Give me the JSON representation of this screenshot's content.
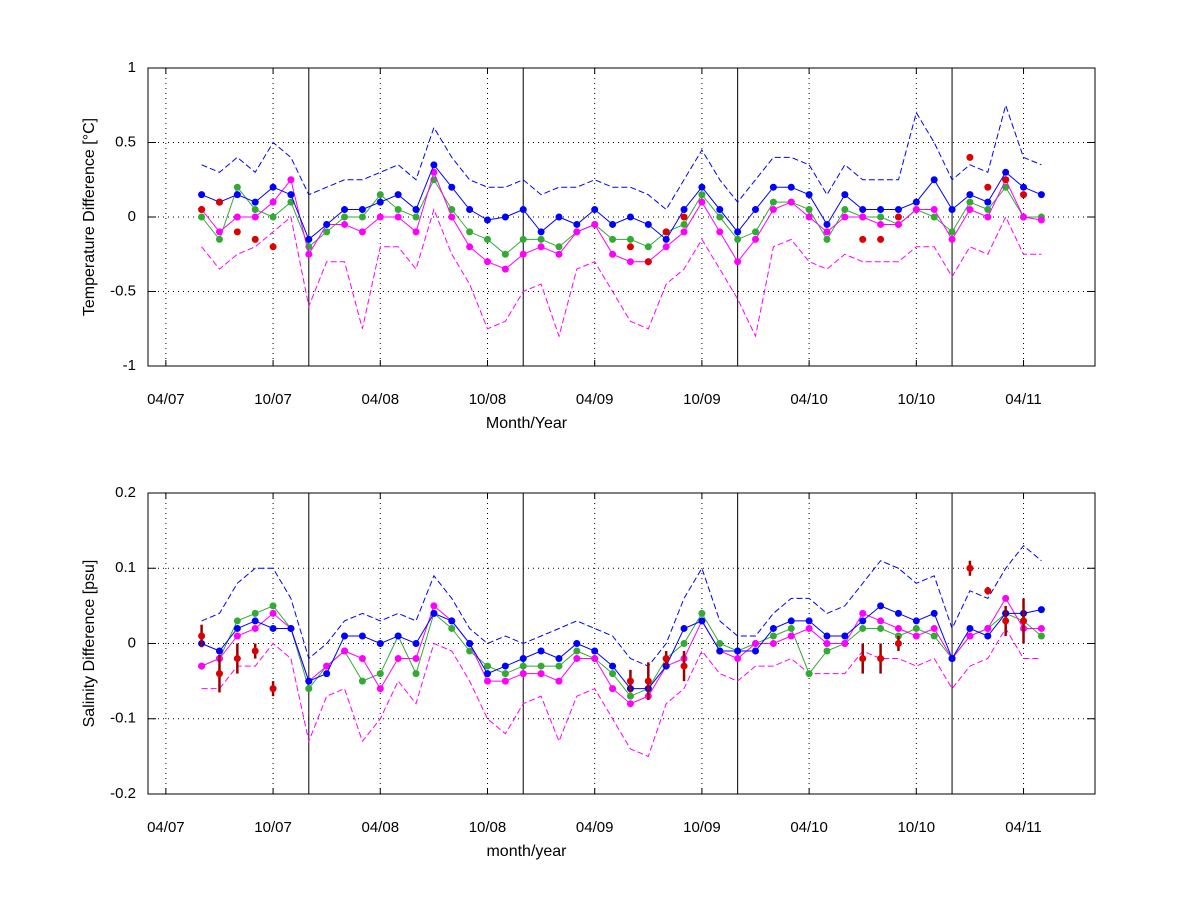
{
  "chart_data": [
    {
      "type": "line",
      "xlabel": "Month/Year",
      "ylabel": "Temperature Difference [°C]",
      "xlim": [
        "03/07",
        "08/11"
      ],
      "xticks": [
        "04/07",
        "10/07",
        "04/08",
        "10/08",
        "04/09",
        "10/09",
        "04/10",
        "10/10",
        "04/11"
      ],
      "vlines": [
        "12/07",
        "12/08",
        "12/09",
        "12/10"
      ],
      "ylim": [
        -1,
        1
      ],
      "yticks": [
        -1,
        -0.5,
        0,
        0.5,
        1
      ],
      "grid": true,
      "x": [
        "06/07",
        "07/07",
        "08/07",
        "09/07",
        "10/07",
        "11/07",
        "12/07",
        "01/08",
        "02/08",
        "03/08",
        "04/08",
        "05/08",
        "06/08",
        "07/08",
        "08/08",
        "09/08",
        "10/08",
        "11/08",
        "12/08",
        "01/09",
        "02/09",
        "03/09",
        "04/09",
        "05/09",
        "06/09",
        "07/09",
        "08/09",
        "09/09",
        "10/09",
        "11/09",
        "12/09",
        "01/10",
        "02/10",
        "03/10",
        "04/10",
        "05/10",
        "06/10",
        "07/10",
        "08/10",
        "09/10",
        "10/10",
        "11/10",
        "12/10",
        "01/11",
        "02/11",
        "03/11",
        "04/11",
        "05/11"
      ],
      "series": [
        {
          "color": "#0000ff",
          "style": "dashed",
          "values": [
            0.35,
            0.3,
            0.4,
            0.3,
            0.5,
            0.4,
            0.15,
            0.2,
            0.25,
            0.25,
            0.3,
            0.35,
            0.25,
            0.6,
            0.4,
            0.25,
            0.2,
            0.2,
            0.25,
            0.15,
            0.2,
            0.2,
            0.25,
            0.2,
            0.2,
            0.15,
            0.05,
            0.25,
            0.45,
            0.25,
            0.1,
            0.25,
            0.4,
            0.4,
            0.35,
            0.15,
            0.35,
            0.25,
            0.25,
            0.25,
            0.7,
            0.5,
            0.25,
            0.35,
            0.3,
            0.75,
            0.4,
            0.35
          ]
        },
        {
          "color": "#ff00ff",
          "style": "dashed",
          "values": [
            -0.2,
            -0.35,
            -0.25,
            -0.2,
            -0.1,
            0.0,
            -0.6,
            -0.3,
            -0.3,
            -0.75,
            -0.2,
            -0.2,
            -0.35,
            0.05,
            -0.25,
            -0.45,
            -0.75,
            -0.7,
            -0.5,
            -0.45,
            -0.8,
            -0.35,
            -0.3,
            -0.5,
            -0.7,
            -0.75,
            -0.45,
            -0.35,
            -0.15,
            -0.35,
            -0.55,
            -0.8,
            -0.2,
            -0.15,
            -0.3,
            -0.35,
            -0.25,
            -0.3,
            -0.3,
            -0.3,
            -0.2,
            -0.2,
            -0.4,
            -0.2,
            -0.25,
            0.0,
            -0.25,
            -0.25
          ]
        },
        {
          "color": "#33aa33",
          "style": "line+markers",
          "values": [
            0.0,
            -0.15,
            0.2,
            0.05,
            0.0,
            0.1,
            -0.2,
            -0.1,
            0.0,
            0.0,
            0.15,
            0.05,
            0.0,
            0.25,
            0.05,
            -0.1,
            -0.15,
            -0.25,
            -0.15,
            -0.15,
            -0.2,
            -0.1,
            -0.05,
            -0.15,
            -0.15,
            -0.2,
            -0.1,
            -0.05,
            0.15,
            0.0,
            -0.15,
            -0.1,
            0.1,
            0.1,
            0.05,
            -0.15,
            0.05,
            0.0,
            0.0,
            -0.05,
            0.05,
            0.0,
            -0.1,
            0.1,
            0.05,
            0.2,
            0.0,
            0.0
          ]
        },
        {
          "color": "#ff00ff",
          "style": "line+markers",
          "values": [
            0.05,
            -0.1,
            0.0,
            0.0,
            0.1,
            0.25,
            -0.25,
            -0.05,
            -0.05,
            -0.1,
            0.0,
            0.0,
            -0.1,
            0.3,
            0.0,
            -0.2,
            -0.3,
            -0.35,
            -0.25,
            -0.2,
            -0.25,
            -0.1,
            -0.05,
            -0.25,
            -0.3,
            -0.3,
            -0.2,
            -0.1,
            0.1,
            -0.1,
            -0.3,
            -0.15,
            0.05,
            0.1,
            0.0,
            -0.1,
            0.0,
            0.0,
            -0.05,
            -0.05,
            0.05,
            0.05,
            -0.15,
            0.05,
            0.0,
            0.25,
            0.0,
            -0.02
          ]
        },
        {
          "color": "#0000ff",
          "style": "line+markers",
          "values": [
            0.15,
            0.1,
            0.15,
            0.1,
            0.2,
            0.15,
            -0.15,
            -0.05,
            0.05,
            0.05,
            0.1,
            0.15,
            0.05,
            0.35,
            0.2,
            0.05,
            -0.02,
            0.0,
            0.05,
            -0.1,
            0.0,
            -0.05,
            0.05,
            -0.05,
            0.0,
            -0.05,
            -0.15,
            0.05,
            0.2,
            0.05,
            -0.1,
            0.05,
            0.2,
            0.2,
            0.15,
            -0.05,
            0.15,
            0.05,
            0.05,
            0.05,
            0.1,
            0.25,
            0.05,
            0.15,
            0.1,
            0.3,
            0.2,
            0.15
          ]
        },
        {
          "color": "#dd0000",
          "style": "markers",
          "values": [
            0.05,
            0.1,
            -0.1,
            -0.15,
            -0.2,
            null,
            null,
            null,
            null,
            null,
            null,
            null,
            null,
            null,
            null,
            null,
            null,
            null,
            null,
            null,
            null,
            null,
            null,
            null,
            -0.2,
            -0.3,
            -0.1,
            0.0,
            null,
            null,
            null,
            null,
            null,
            null,
            null,
            null,
            null,
            -0.15,
            -0.15,
            0.0,
            null,
            null,
            null,
            0.4,
            0.2,
            0.25,
            0.15,
            null
          ]
        }
      ]
    },
    {
      "type": "line",
      "xlabel": "month/year",
      "ylabel": "Salinity Difference [psu]",
      "xlim": [
        "03/07",
        "08/11"
      ],
      "xticks": [
        "04/07",
        "10/07",
        "04/08",
        "10/08",
        "04/09",
        "10/09",
        "04/10",
        "10/10",
        "04/11"
      ],
      "vlines": [
        "12/07",
        "12/08",
        "12/09",
        "12/10"
      ],
      "ylim": [
        -0.2,
        0.2
      ],
      "yticks": [
        -0.2,
        -0.1,
        0,
        0.1,
        0.2
      ],
      "grid": true,
      "x": [
        "06/07",
        "07/07",
        "08/07",
        "09/07",
        "10/07",
        "11/07",
        "12/07",
        "01/08",
        "02/08",
        "03/08",
        "04/08",
        "05/08",
        "06/08",
        "07/08",
        "08/08",
        "09/08",
        "10/08",
        "11/08",
        "12/08",
        "01/09",
        "02/09",
        "03/09",
        "04/09",
        "05/09",
        "06/09",
        "07/09",
        "08/09",
        "09/09",
        "10/09",
        "11/09",
        "12/09",
        "01/10",
        "02/10",
        "03/10",
        "04/10",
        "05/10",
        "06/10",
        "07/10",
        "08/10",
        "09/10",
        "10/10",
        "11/10",
        "12/10",
        "01/11",
        "02/11",
        "03/11",
        "04/11",
        "05/11"
      ],
      "series": [
        {
          "color": "#0000ff",
          "style": "dashed",
          "values": [
            0.03,
            0.04,
            0.08,
            0.1,
            0.1,
            0.06,
            -0.02,
            0.0,
            0.03,
            0.04,
            0.03,
            0.04,
            0.03,
            0.09,
            0.06,
            0.02,
            0.0,
            0.01,
            0.0,
            0.01,
            0.02,
            0.03,
            0.02,
            0.01,
            -0.02,
            -0.03,
            0.0,
            0.06,
            0.1,
            0.03,
            0.01,
            0.01,
            0.04,
            0.06,
            0.06,
            0.04,
            0.05,
            0.08,
            0.11,
            0.1,
            0.08,
            0.09,
            0.02,
            0.07,
            0.06,
            0.1,
            0.13,
            0.11
          ]
        },
        {
          "color": "#ff00ff",
          "style": "dashed",
          "values": [
            -0.06,
            -0.06,
            -0.03,
            -0.03,
            0.0,
            -0.02,
            -0.13,
            -0.07,
            -0.06,
            -0.13,
            -0.1,
            -0.05,
            -0.08,
            0.0,
            -0.01,
            -0.05,
            -0.1,
            -0.12,
            -0.08,
            -0.07,
            -0.13,
            -0.07,
            -0.06,
            -0.1,
            -0.14,
            -0.15,
            -0.08,
            -0.06,
            -0.01,
            -0.04,
            -0.05,
            -0.03,
            -0.03,
            -0.02,
            -0.04,
            -0.04,
            -0.04,
            -0.01,
            -0.02,
            -0.02,
            -0.03,
            -0.02,
            -0.06,
            -0.03,
            -0.02,
            0.02,
            -0.02,
            -0.02
          ]
        },
        {
          "color": "#33aa33",
          "style": "line+markers",
          "values": [
            -0.03,
            -0.02,
            0.03,
            0.04,
            0.05,
            0.02,
            -0.06,
            -0.03,
            -0.01,
            -0.05,
            -0.04,
            0.01,
            -0.04,
            0.04,
            0.02,
            -0.01,
            -0.03,
            -0.04,
            -0.03,
            -0.03,
            -0.03,
            -0.01,
            -0.02,
            -0.04,
            -0.07,
            -0.06,
            -0.02,
            0.0,
            0.04,
            0.0,
            -0.01,
            0.0,
            0.01,
            0.02,
            -0.04,
            -0.01,
            0.0,
            0.02,
            0.02,
            0.01,
            0.02,
            0.01,
            -0.02,
            0.01,
            0.02,
            0.04,
            0.03,
            0.01
          ]
        },
        {
          "color": "#ff00ff",
          "style": "line+markers",
          "values": [
            -0.03,
            -0.02,
            0.01,
            0.02,
            0.04,
            0.02,
            -0.05,
            -0.03,
            -0.01,
            -0.02,
            -0.06,
            -0.02,
            -0.02,
            0.05,
            0.03,
            0.0,
            -0.05,
            -0.05,
            -0.04,
            -0.04,
            -0.05,
            -0.02,
            -0.02,
            -0.06,
            -0.08,
            -0.07,
            -0.03,
            -0.02,
            0.03,
            -0.01,
            -0.02,
            0.0,
            0.0,
            0.01,
            0.02,
            0.0,
            0.0,
            0.04,
            0.03,
            0.02,
            0.01,
            0.02,
            -0.02,
            0.01,
            0.02,
            0.06,
            0.02,
            0.02
          ]
        },
        {
          "color": "#0000ff",
          "style": "line+markers",
          "values": [
            0.0,
            -0.01,
            0.02,
            0.03,
            0.02,
            0.02,
            -0.05,
            -0.04,
            0.01,
            0.01,
            0.0,
            0.01,
            0.0,
            0.04,
            0.03,
            0.0,
            -0.04,
            -0.03,
            -0.02,
            -0.01,
            -0.02,
            0.0,
            -0.01,
            -0.03,
            -0.06,
            -0.06,
            -0.03,
            0.02,
            0.03,
            -0.01,
            -0.01,
            -0.01,
            0.02,
            0.03,
            0.03,
            0.01,
            0.01,
            0.03,
            0.05,
            0.04,
            0.03,
            0.04,
            -0.02,
            0.02,
            0.01,
            0.04,
            0.04,
            0.045
          ]
        },
        {
          "color": "#dd0000",
          "style": "markers",
          "error_color": "#990000",
          "values": [
            0.01,
            -0.04,
            -0.02,
            -0.01,
            -0.06,
            null,
            null,
            null,
            null,
            null,
            null,
            null,
            null,
            null,
            null,
            null,
            null,
            null,
            null,
            null,
            null,
            null,
            null,
            null,
            -0.05,
            -0.05,
            -0.02,
            -0.03,
            null,
            null,
            null,
            null,
            null,
            null,
            null,
            null,
            null,
            -0.02,
            -0.02,
            0.0,
            null,
            null,
            null,
            0.1,
            0.07,
            0.03,
            0.03,
            null
          ],
          "errors": [
            0.015,
            0.025,
            0.02,
            0.01,
            0.01,
            null,
            null,
            null,
            null,
            null,
            null,
            null,
            null,
            null,
            null,
            null,
            null,
            null,
            null,
            null,
            null,
            null,
            null,
            null,
            0.015,
            0.025,
            0.01,
            0.02,
            null,
            null,
            null,
            null,
            null,
            null,
            null,
            null,
            null,
            0.02,
            0.02,
            0.01,
            null,
            null,
            null,
            0.01,
            0.005,
            0.02,
            0.03,
            null
          ]
        }
      ]
    }
  ]
}
